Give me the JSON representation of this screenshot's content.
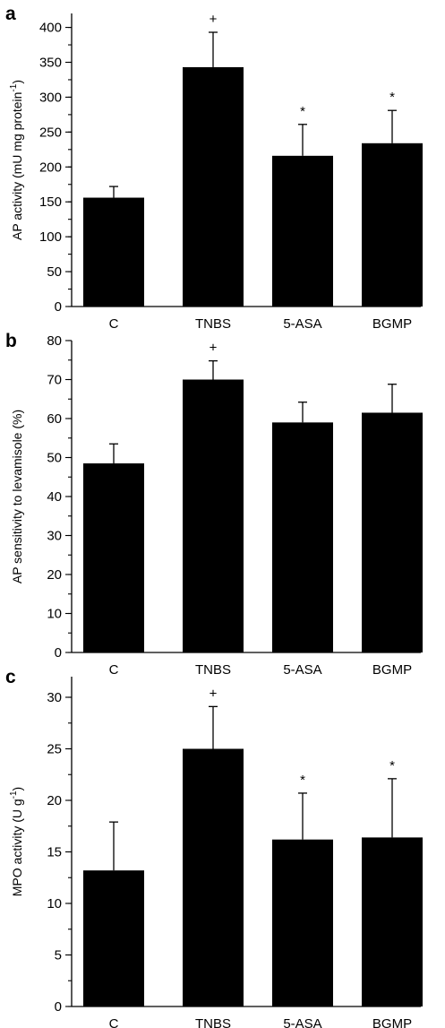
{
  "chart_data": [
    {
      "panel": "a",
      "type": "bar",
      "ylabel": "AP activity (mU mg protein",
      "ylabel_sup": "-1",
      "ylabel_end": ")",
      "categories": [
        "C",
        "TNBS",
        "5-ASA",
        "BGMP"
      ],
      "values": [
        156,
        343,
        216,
        234
      ],
      "errors": [
        16,
        50,
        45,
        47
      ],
      "annotations": [
        "",
        "+",
        "*",
        "*"
      ],
      "ylim": [
        0,
        420
      ],
      "yticks": [
        0,
        50,
        100,
        150,
        200,
        250,
        300,
        350,
        400
      ],
      "minor_step": 25
    },
    {
      "panel": "b",
      "type": "bar",
      "ylabel": "AP sensitivity to levamisole (%)",
      "ylabel_sup": "",
      "ylabel_end": "",
      "categories": [
        "C",
        "TNBS",
        "5-ASA",
        "BGMP"
      ],
      "values": [
        48.5,
        70,
        59,
        61.5
      ],
      "errors": [
        5,
        4.8,
        5.2,
        7.3
      ],
      "annotations": [
        "",
        "+",
        "",
        ""
      ],
      "ylim": [
        0,
        80
      ],
      "yticks": [
        0,
        10,
        20,
        30,
        40,
        50,
        60,
        70,
        80
      ],
      "minor_step": 5
    },
    {
      "panel": "c",
      "type": "bar",
      "ylabel": "MPO activity (U g",
      "ylabel_sup": "-1",
      "ylabel_end": ")",
      "categories": [
        "C",
        "TNBS",
        "5-ASA",
        "BGMP"
      ],
      "values": [
        13.2,
        25,
        16.2,
        16.4
      ],
      "errors": [
        4.7,
        4.1,
        4.5,
        5.7
      ],
      "annotations": [
        "",
        "+",
        "*",
        "*"
      ],
      "ylim": [
        0,
        32
      ],
      "yticks": [
        0,
        5,
        10,
        15,
        20,
        25,
        30
      ],
      "minor_step": 2.5
    }
  ]
}
